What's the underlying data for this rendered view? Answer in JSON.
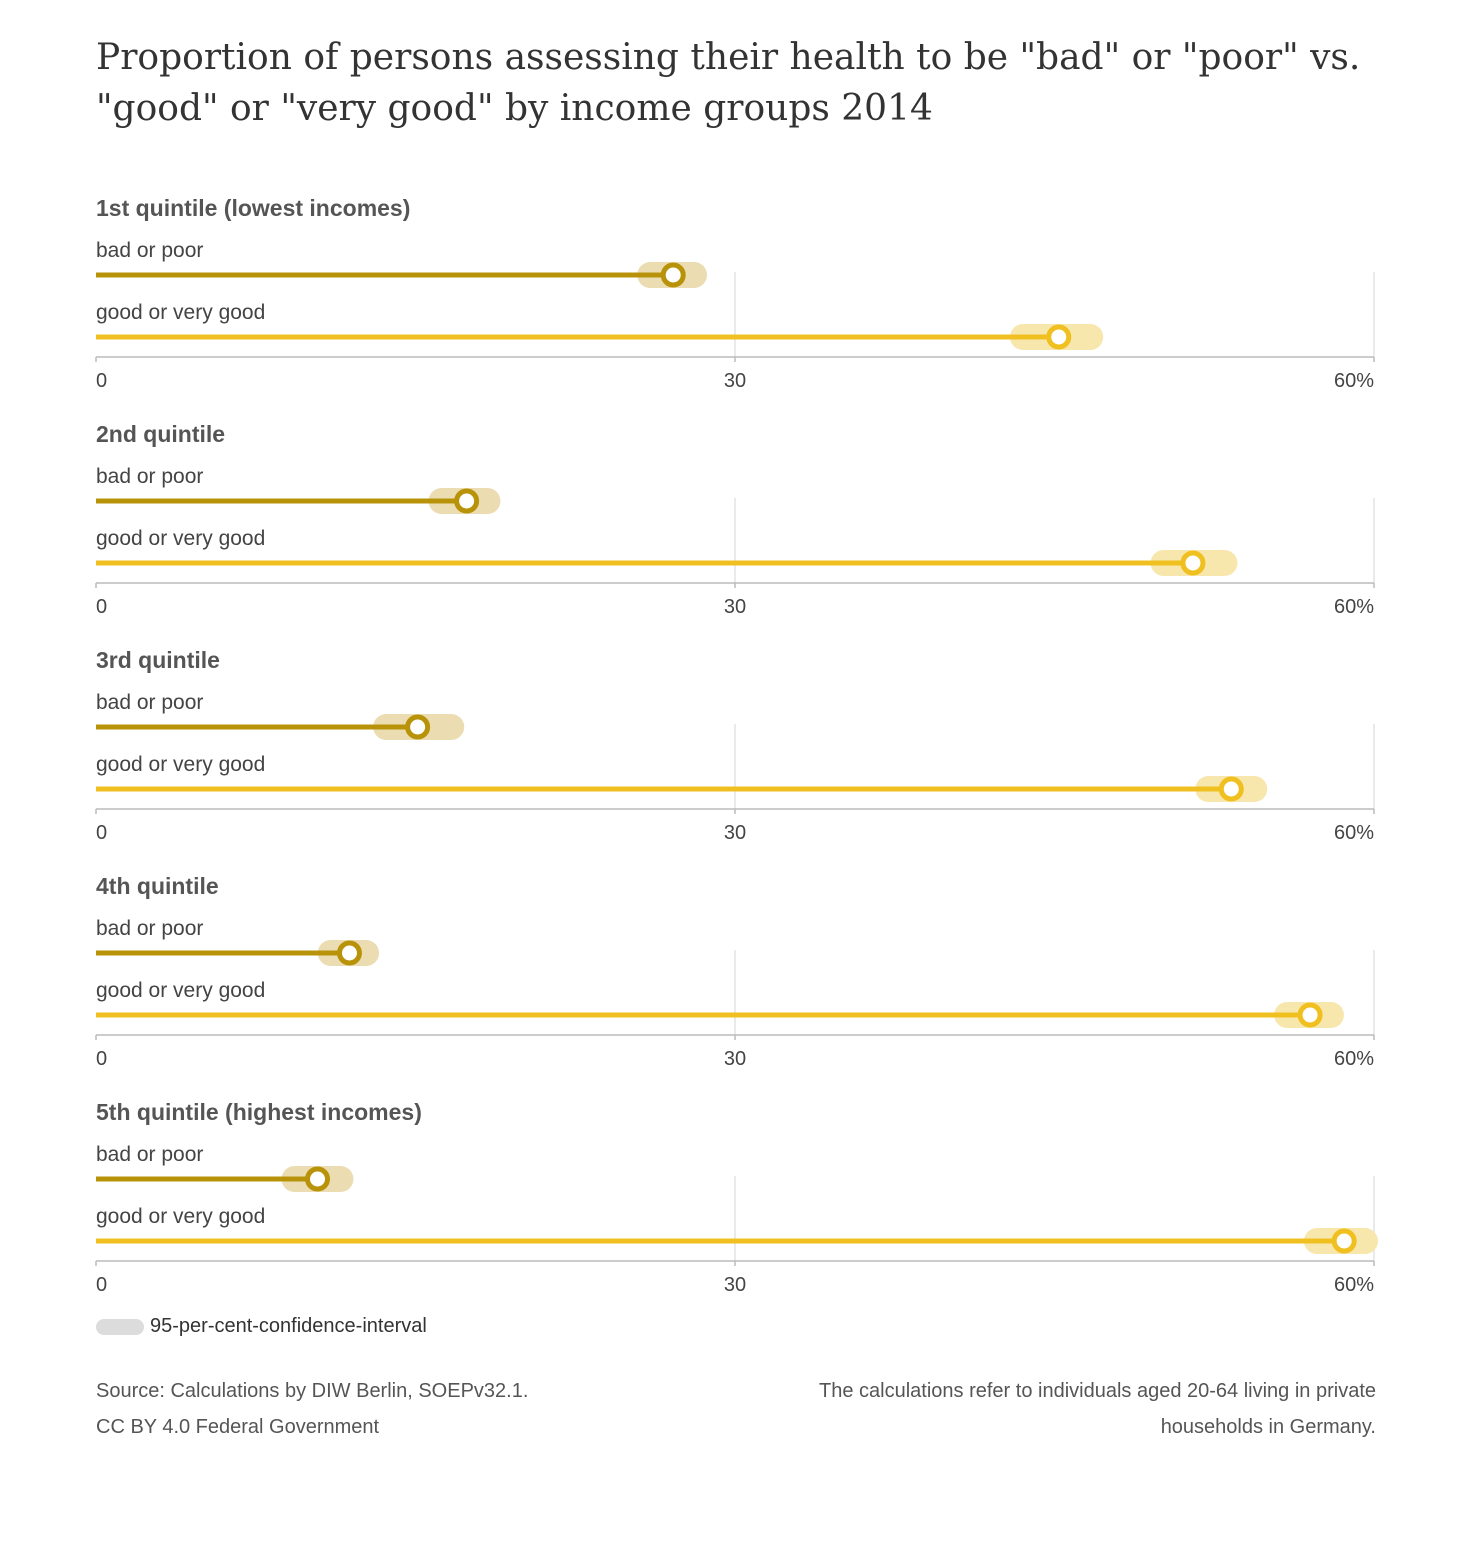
{
  "title": "Proportion of persons assessing their health to be \"bad\" or \"poor\" vs. \"good\" or \"very good\" by income groups 2014",
  "colors": {
    "bad": "#b8930a",
    "bad_ci": "#ecdcb2",
    "good": "#f0c020",
    "good_ci": "#f8e7ad",
    "grid": "#e3e3e3",
    "axis": "#bbbbbb",
    "legend_swatch": "#dcdcdc"
  },
  "chart_data": {
    "type": "dot-bar",
    "xlim": [
      0,
      60
    ],
    "tick_values": [
      0,
      30,
      60
    ],
    "tick_labels": [
      "0",
      "30",
      "60%"
    ],
    "series_labels": [
      "bad or poor",
      "good or very good"
    ],
    "groups": [
      {
        "label": "1st quintile (lowest incomes)",
        "bad": {
          "value": 27.1,
          "ci": [
            25.6,
            28.5
          ]
        },
        "good": {
          "value": 45.2,
          "ci": [
            43.1,
            47.1
          ]
        }
      },
      {
        "label": "2nd quintile",
        "bad": {
          "value": 17.4,
          "ci": [
            15.8,
            18.8
          ]
        },
        "good": {
          "value": 51.5,
          "ci": [
            49.7,
            53.4
          ]
        }
      },
      {
        "label": "3rd quintile",
        "bad": {
          "value": 15.1,
          "ci": [
            13.2,
            17.1
          ]
        },
        "good": {
          "value": 53.3,
          "ci": [
            51.8,
            54.8
          ]
        }
      },
      {
        "label": "4th quintile",
        "bad": {
          "value": 11.9,
          "ci": [
            10.6,
            13.1
          ]
        },
        "good": {
          "value": 57.0,
          "ci": [
            55.5,
            58.4
          ]
        }
      },
      {
        "label": "5th quintile (highest incomes)",
        "bad": {
          "value": 10.4,
          "ci": [
            8.9,
            11.9
          ]
        },
        "good": {
          "value": 58.6,
          "ci": [
            56.9,
            60
          ]
        }
      }
    ]
  },
  "legend": {
    "label": "95-per-cent-confidence-interval"
  },
  "footer": {
    "source": "Source: Calculations by DIW Berlin, SOEPv32.1.",
    "license": "CC BY 4.0 Federal Government",
    "note": "The calculations refer to individuals aged 20-64 living in private households in Germany."
  }
}
